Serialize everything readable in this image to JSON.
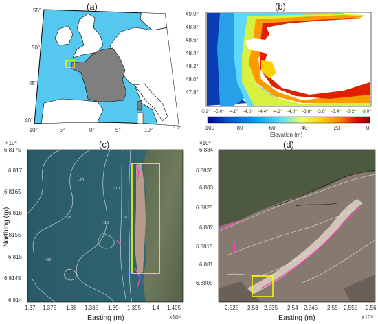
{
  "panels": {
    "a": {
      "label": "(a)",
      "lat_labels": [
        "55°",
        "50°",
        "45°",
        "40°"
      ],
      "lon_labels": [
        "-10°",
        "-5°",
        "0°",
        "5°",
        "10°",
        "15°"
      ],
      "colors": {
        "sea": "#55c8f0",
        "land": "#ffffff",
        "france": "#7f7f7f",
        "box": "#f2f200"
      }
    },
    "b": {
      "label": "(b)",
      "x_ticks": [
        "-5.2°",
        "-5.0°",
        "-4.8°",
        "-4.6°",
        "-4.4°",
        "-4.2°",
        "-4.0°",
        "-3.8°",
        "-3.6°",
        "-3.4°",
        "-3.2°",
        "-3.0°"
      ],
      "y_ticks": [
        "49.0°",
        "48.8°",
        "48.6°",
        "48.4°",
        "48.2°",
        "48.0°",
        "47.8°"
      ],
      "colorbar_ticks": [
        "-100",
        "-80",
        "-60",
        "-40",
        "-20",
        "0"
      ],
      "colorbar_label": "Elevation (m)",
      "colorscale": [
        "#00008b",
        "#0050c8",
        "#00a0e8",
        "#5fd8ff",
        "#e8ff60",
        "#ffd000",
        "#ff8000",
        "#e60000",
        "#8b0000"
      ]
    },
    "c": {
      "label": "(c)",
      "exponent_y": "×10⁶",
      "exponent_x": "×10⁵",
      "y_ticks": [
        "6.8175",
        "6.817",
        "6.8165",
        "6.816",
        "6.8155",
        "6.815",
        "6.8145",
        "6.814"
      ],
      "x_ticks": [
        "1.37",
        "1.375",
        "1.38",
        "1.385",
        "1.39",
        "1.395",
        "1.4",
        "1.405"
      ],
      "xlabel": "Easting (m)",
      "ylabel": "Northing (m)",
      "contour_labels": [
        "-5",
        "-10",
        "-15",
        "-20",
        "-25",
        "-30"
      ],
      "colors": {
        "sea": "#2c5a66",
        "box": "#ffff00",
        "contour": "#c8d0d0",
        "pink": "#ff40c0"
      }
    },
    "d": {
      "label": "(d)",
      "exponent_y": "×10⁶",
      "exponent_x": "×10⁵",
      "y_ticks": [
        "6.884",
        "6.8835",
        "6.883",
        "6.8825",
        "6.882",
        "6.8815",
        "6.881",
        "6.8805"
      ],
      "x_ticks": [
        "2.525",
        "2.53",
        "2.535",
        "2.54",
        "2.545",
        "2.55",
        "2.555",
        "2.56"
      ],
      "xlabel": "Easting (m)",
      "colors": {
        "ground": "#867a70",
        "box": "#ffff00",
        "pink": "#ff40c0"
      }
    }
  }
}
